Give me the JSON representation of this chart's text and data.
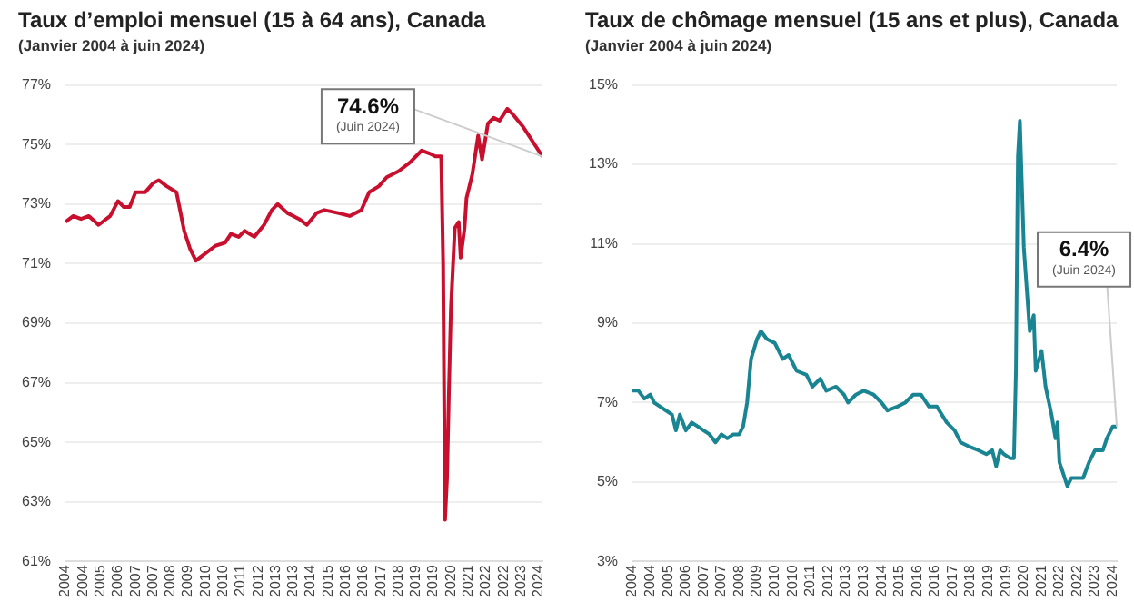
{
  "chart_data": [
    {
      "type": "line",
      "title": "Taux d’emploi mensuel (15 à 64 ans), Canada",
      "subtitle": "(Janvier 2004 à juin 2024)",
      "x": [
        "2004-01",
        "2004-05",
        "2004-09",
        "2005-01",
        "2005-06",
        "2005-12",
        "2006-04",
        "2006-07",
        "2006-10",
        "2007-01",
        "2007-06",
        "2007-10",
        "2008-01",
        "2008-05",
        "2008-10",
        "2009-02",
        "2009-05",
        "2009-08",
        "2009-12",
        "2010-06",
        "2010-11",
        "2011-02",
        "2011-06",
        "2011-09",
        "2012-02",
        "2012-07",
        "2012-11",
        "2013-02",
        "2013-07",
        "2014-01",
        "2014-05",
        "2014-10",
        "2015-02",
        "2015-09",
        "2016-03",
        "2016-09",
        "2017-01",
        "2017-06",
        "2017-10",
        "2018-04",
        "2018-10",
        "2019-04",
        "2019-08",
        "2019-11",
        "2020-02",
        "2020-03",
        "2020-04",
        "2020-05",
        "2020-06",
        "2020-07",
        "2020-09",
        "2020-11",
        "2020-12",
        "2021-02",
        "2021-03",
        "2021-06",
        "2021-09",
        "2021-11",
        "2022-02",
        "2022-05",
        "2022-08",
        "2022-12",
        "2023-03",
        "2023-08",
        "2023-12",
        "2024-03",
        "2024-06"
      ],
      "series": [
        {
          "color": "#c8102e",
          "values": [
            72.4,
            72.6,
            72.5,
            72.6,
            72.3,
            72.6,
            73.1,
            72.9,
            72.9,
            73.4,
            73.4,
            73.7,
            73.8,
            73.6,
            73.4,
            72.1,
            71.5,
            71.1,
            71.3,
            71.6,
            71.7,
            72.0,
            71.9,
            72.1,
            71.9,
            72.3,
            72.8,
            73.0,
            72.7,
            72.5,
            72.3,
            72.7,
            72.8,
            72.7,
            72.6,
            72.8,
            73.4,
            73.6,
            73.9,
            74.1,
            74.4,
            74.8,
            74.7,
            74.6,
            74.6,
            71.0,
            62.4,
            63.8,
            66.8,
            69.5,
            72.2,
            72.4,
            71.2,
            72.2,
            73.2,
            74.0,
            75.3,
            74.5,
            75.7,
            75.9,
            75.8,
            76.2,
            76.0,
            75.6,
            75.2,
            74.9,
            74.6
          ]
        }
      ],
      "xlim": [
        "2004-01",
        "2024-06"
      ],
      "xticks": [
        {
          "value": "2004-01",
          "label": "2004"
        },
        {
          "value": "2004-10",
          "label": "2004"
        },
        {
          "value": "2005-07",
          "label": "2005"
        },
        {
          "value": "2006-04",
          "label": "2006"
        },
        {
          "value": "2007-01",
          "label": "2007"
        },
        {
          "value": "2007-10",
          "label": "2007"
        },
        {
          "value": "2008-07",
          "label": "2008"
        },
        {
          "value": "2009-04",
          "label": "2009"
        },
        {
          "value": "2010-01",
          "label": "2010"
        },
        {
          "value": "2010-10",
          "label": "2010"
        },
        {
          "value": "2011-07",
          "label": "2011"
        },
        {
          "value": "2012-04",
          "label": "2012"
        },
        {
          "value": "2013-01",
          "label": "2013"
        },
        {
          "value": "2013-10",
          "label": "2013"
        },
        {
          "value": "2014-07",
          "label": "2014"
        },
        {
          "value": "2015-04",
          "label": "2015"
        },
        {
          "value": "2016-01",
          "label": "2016"
        },
        {
          "value": "2016-10",
          "label": "2016"
        },
        {
          "value": "2017-07",
          "label": "2017"
        },
        {
          "value": "2018-04",
          "label": "2018"
        },
        {
          "value": "2019-01",
          "label": "2019"
        },
        {
          "value": "2019-10",
          "label": "2019"
        },
        {
          "value": "2020-07",
          "label": "2020"
        },
        {
          "value": "2021-04",
          "label": "2021"
        },
        {
          "value": "2022-01",
          "label": "2022"
        },
        {
          "value": "2022-10",
          "label": "2022"
        },
        {
          "value": "2023-07",
          "label": "2023"
        },
        {
          "value": "2024-04",
          "label": "2024"
        }
      ],
      "ylim": [
        61,
        77
      ],
      "yticks": [
        {
          "value": 61,
          "label": "61%"
        },
        {
          "value": 63,
          "label": "63%"
        },
        {
          "value": 65,
          "label": "65%"
        },
        {
          "value": 67,
          "label": "67%"
        },
        {
          "value": 69,
          "label": "69%"
        },
        {
          "value": 71,
          "label": "71%"
        },
        {
          "value": 73,
          "label": "73%"
        },
        {
          "value": 75,
          "label": "75%"
        },
        {
          "value": 77,
          "label": "77%"
        }
      ],
      "grid": "y",
      "annotations": [
        {
          "text": "74.6%",
          "x": "2024-06",
          "y": 74.6
        },
        "(Juin 2024)"
      ]
    },
    {
      "type": "line",
      "title": "Taux de chômage mensuel (15 ans et plus), Canada",
      "subtitle": "(Janvier 2004 à juin 2024)",
      "x": [
        "2004-01",
        "2004-04",
        "2004-07",
        "2004-10",
        "2004-12",
        "2005-03",
        "2005-06",
        "2005-09",
        "2005-11",
        "2006-01",
        "2006-04",
        "2006-07",
        "2006-10",
        "2007-01",
        "2007-04",
        "2007-07",
        "2007-10",
        "2008-01",
        "2008-04",
        "2008-07",
        "2008-09",
        "2008-11",
        "2009-01",
        "2009-04",
        "2009-06",
        "2009-09",
        "2010-01",
        "2010-05",
        "2010-08",
        "2010-12",
        "2011-05",
        "2011-08",
        "2011-12",
        "2012-03",
        "2012-08",
        "2012-12",
        "2013-02",
        "2013-06",
        "2013-10",
        "2014-03",
        "2014-07",
        "2014-10",
        "2015-03",
        "2015-07",
        "2015-11",
        "2016-03",
        "2016-07",
        "2016-11",
        "2017-04",
        "2017-08",
        "2017-11",
        "2018-03",
        "2018-08",
        "2018-12",
        "2019-03",
        "2019-05",
        "2019-07",
        "2019-09",
        "2019-12",
        "2020-02",
        "2020-03",
        "2020-04",
        "2020-05",
        "2020-06",
        "2020-07",
        "2020-08",
        "2020-10",
        "2020-12",
        "2021-01",
        "2021-04",
        "2021-06",
        "2021-09",
        "2021-11",
        "2021-12",
        "2022-01",
        "2022-03",
        "2022-05",
        "2022-07",
        "2022-10",
        "2023-01",
        "2023-04",
        "2023-07",
        "2023-10",
        "2023-11",
        "2024-01",
        "2024-04",
        "2024-06"
      ],
      "series": [
        {
          "color": "#1a8592",
          "values": [
            7.3,
            7.3,
            7.1,
            7.2,
            7.0,
            6.9,
            6.8,
            6.7,
            6.3,
            6.7,
            6.3,
            6.5,
            6.4,
            6.3,
            6.2,
            6.0,
            6.2,
            6.1,
            6.2,
            6.2,
            6.4,
            7.0,
            8.1,
            8.6,
            8.8,
            8.6,
            8.5,
            8.1,
            8.2,
            7.8,
            7.7,
            7.4,
            7.6,
            7.3,
            7.4,
            7.2,
            7.0,
            7.2,
            7.3,
            7.2,
            7.0,
            6.8,
            6.9,
            7.0,
            7.2,
            7.2,
            6.9,
            6.9,
            6.5,
            6.3,
            6.0,
            5.9,
            5.8,
            5.7,
            5.8,
            5.4,
            5.8,
            5.7,
            5.6,
            5.6,
            7.8,
            13.2,
            14.1,
            12.5,
            10.9,
            10.2,
            8.8,
            9.2,
            7.8,
            8.3,
            7.4,
            6.7,
            6.1,
            6.5,
            5.5,
            5.2,
            4.9,
            5.1,
            5.1,
            5.1,
            5.5,
            5.8,
            5.8,
            5.8,
            6.1,
            6.4,
            6.4
          ]
        }
      ],
      "xlim": [
        "2004-01",
        "2024-06"
      ],
      "xticks": [
        {
          "value": "2004-01",
          "label": "2004"
        },
        {
          "value": "2004-10",
          "label": "2004"
        },
        {
          "value": "2005-07",
          "label": "2005"
        },
        {
          "value": "2006-04",
          "label": "2006"
        },
        {
          "value": "2007-01",
          "label": "2007"
        },
        {
          "value": "2007-10",
          "label": "2007"
        },
        {
          "value": "2008-07",
          "label": "2008"
        },
        {
          "value": "2009-04",
          "label": "2009"
        },
        {
          "value": "2010-01",
          "label": "2010"
        },
        {
          "value": "2010-10",
          "label": "2010"
        },
        {
          "value": "2011-07",
          "label": "2011"
        },
        {
          "value": "2012-04",
          "label": "2012"
        },
        {
          "value": "2013-01",
          "label": "2013"
        },
        {
          "value": "2013-10",
          "label": "2013"
        },
        {
          "value": "2014-07",
          "label": "2014"
        },
        {
          "value": "2015-04",
          "label": "2015"
        },
        {
          "value": "2016-01",
          "label": "2016"
        },
        {
          "value": "2016-10",
          "label": "2016"
        },
        {
          "value": "2017-07",
          "label": "2017"
        },
        {
          "value": "2018-04",
          "label": "2018"
        },
        {
          "value": "2019-01",
          "label": "2019"
        },
        {
          "value": "2019-10",
          "label": "2019"
        },
        {
          "value": "2020-07",
          "label": "2020"
        },
        {
          "value": "2021-04",
          "label": "2021"
        },
        {
          "value": "2022-01",
          "label": "2022"
        },
        {
          "value": "2022-10",
          "label": "2022"
        },
        {
          "value": "2023-07",
          "label": "2023"
        },
        {
          "value": "2024-04",
          "label": "2024"
        }
      ],
      "ylim": [
        3,
        15
      ],
      "yticks": [
        {
          "value": 3,
          "label": "3%"
        },
        {
          "value": 5,
          "label": "5%"
        },
        {
          "value": 7,
          "label": "7%"
        },
        {
          "value": 9,
          "label": "9%"
        },
        {
          "value": 11,
          "label": "11%"
        },
        {
          "value": 13,
          "label": "13%"
        },
        {
          "value": 15,
          "label": "15%"
        }
      ],
      "grid": "y",
      "annotations": [
        {
          "text": "6.4%",
          "x": "2024-06",
          "y": 6.4
        },
        "(Juin 2024)"
      ]
    }
  ]
}
